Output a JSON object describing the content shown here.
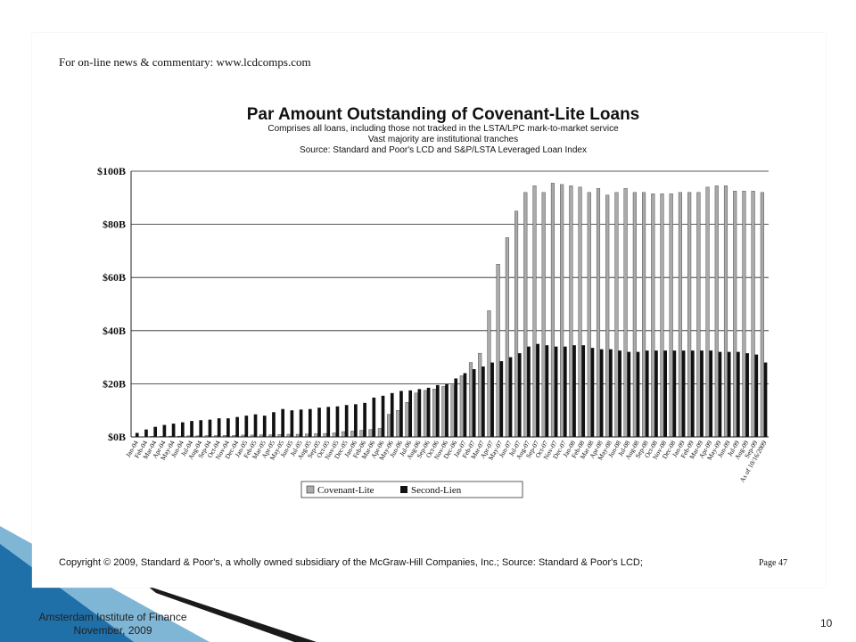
{
  "header": {
    "link_text": "For on-line news & commentary: www.lcdcomps.com"
  },
  "footer": {
    "copyright": "Copyright © 2009, Standard & Poor's, a wholly owned subsidiary of the McGraw-Hill Companies, Inc.; Source:  Standard & Poor's LCD;",
    "page_label": "Page 47",
    "institution_line1": "Amsterdam Institute of Finance",
    "institution_line2": "November, 2009",
    "slide_number": "10"
  },
  "colors": {
    "slide_accent": "#1f6fa8",
    "bar_covlite": "#aaaaaa",
    "bar_secondlien": "#111111"
  },
  "chart_data": {
    "type": "bar",
    "title": "Par Amount Outstanding of Covenant-Lite Loans",
    "subtitle": [
      "Comprises all loans, including those not tracked in the LSTA/LPC mark-to-market service",
      "Vast majority are institutional tranches",
      "Source: Standard and Poor's LCD and S&P/LSTA Leveraged Loan Index"
    ],
    "ylim": [
      0,
      100
    ],
    "yticks": [
      0,
      20,
      40,
      60,
      80,
      100
    ],
    "ytick_labels": [
      "$0B",
      "$20B",
      "$40B",
      "$60B",
      "$80B",
      "$100B"
    ],
    "grid": true,
    "legend_position": "bottom-center",
    "categories": [
      "Jan-04",
      "Feb-04",
      "Mar-04",
      "Apr-04",
      "May-04",
      "Jun-04",
      "Jul-04",
      "Aug-04",
      "Sep-04",
      "Oct-04",
      "Nov-04",
      "Dec-04",
      "Jan-05",
      "Feb-05",
      "Mar-05",
      "Apr-05",
      "May-05",
      "Jun-05",
      "Jul-05",
      "Aug-05",
      "Sep-05",
      "Oct-05",
      "Nov-05",
      "Dec-05",
      "Jan-06",
      "Feb-06",
      "Mar-06",
      "Apr-06",
      "May-06",
      "Jun-06",
      "Jul-06",
      "Aug-06",
      "Sep-06",
      "Oct-06",
      "Nov-06",
      "Dec-06",
      "Jan-07",
      "Feb-07",
      "Mar-07",
      "Apr-07",
      "May-07",
      "Jun-07",
      "Jul-07",
      "Aug-07",
      "Sep-07",
      "Oct-07",
      "Nov-07",
      "Dec-07",
      "Jan-08",
      "Feb-08",
      "Mar-08",
      "Apr-08",
      "May-08",
      "Jun-08",
      "Jul-08",
      "Aug-08",
      "Sep-08",
      "Oct-08",
      "Nov-08",
      "Dec-08",
      "Jan-09",
      "Feb-09",
      "Mar-09",
      "Apr-09",
      "May-09",
      "Jun-09",
      "Jul-09",
      "Aug-09",
      "Sep-09",
      "As of 10/16/2009"
    ],
    "series": [
      {
        "name": "Covenant-Lite",
        "values": [
          0.1,
          0.1,
          0.2,
          0.2,
          0.3,
          0.3,
          0.4,
          0.4,
          0.5,
          0.5,
          0.6,
          0.6,
          0.7,
          0.7,
          0.8,
          0.8,
          0.9,
          1.0,
          1.0,
          1.1,
          1.2,
          1.3,
          1.5,
          2.0,
          2.2,
          2.5,
          2.8,
          3.2,
          8.5,
          10.0,
          13.0,
          16.5,
          17.5,
          18.0,
          19.0,
          19.5,
          23.0,
          28.0,
          31.5,
          47.5,
          65.0,
          75.0,
          85.0,
          92.0,
          94.5,
          92.0,
          95.5,
          95.0,
          94.5,
          94.0,
          92.0,
          93.5,
          91.0,
          92.0,
          93.5,
          92.0,
          92.0,
          91.5,
          91.5,
          91.5,
          92.0,
          92.0,
          92.0,
          94.0,
          94.5,
          94.5,
          92.5,
          92.5,
          92.5,
          92.0
        ]
      },
      {
        "name": "Second-Lien",
        "values": [
          1.5,
          2.8,
          3.8,
          4.5,
          5.0,
          5.5,
          6.0,
          6.3,
          6.5,
          7.0,
          7.0,
          7.5,
          8.0,
          8.5,
          8.0,
          9.3,
          10.5,
          10.0,
          10.3,
          10.5,
          11.0,
          11.3,
          11.5,
          12.0,
          12.3,
          12.8,
          14.8,
          15.5,
          16.5,
          17.3,
          17.5,
          18.0,
          18.5,
          19.5,
          19.8,
          22.0,
          24.0,
          25.5,
          26.5,
          28.0,
          28.5,
          30.0,
          31.5,
          34.0,
          35.0,
          34.5,
          34.0,
          34.0,
          34.5,
          34.5,
          33.5,
          33.0,
          33.0,
          32.5,
          32.0,
          32.0,
          32.5,
          32.5,
          32.5,
          32.5,
          32.5,
          32.5,
          32.5,
          32.5,
          32.0,
          32.0,
          32.0,
          31.5,
          31.0,
          28.0
        ]
      }
    ]
  }
}
